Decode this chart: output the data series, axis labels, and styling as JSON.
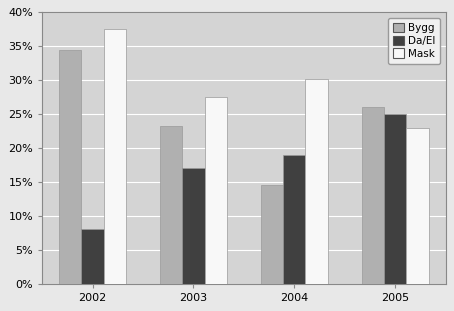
{
  "years": [
    "2002",
    "2003",
    "2004",
    "2005"
  ],
  "series": {
    "Bygg": [
      0.345,
      0.232,
      0.145,
      0.26
    ],
    "Da/El": [
      0.08,
      0.17,
      0.19,
      0.25
    ],
    "Mask": [
      0.375,
      0.275,
      0.302,
      0.23
    ]
  },
  "colors": {
    "Bygg": "#b0b0b0",
    "Da/El": "#404040",
    "Mask": "#f8f8f8"
  },
  "ylim": [
    0,
    0.4
  ],
  "yticks": [
    0.0,
    0.05,
    0.1,
    0.15,
    0.2,
    0.25,
    0.3,
    0.35,
    0.4
  ],
  "figure_bg_color": "#e8e8e8",
  "plot_bg_color": "#d4d4d4",
  "legend_labels": [
    "Bygg",
    "Da/El",
    "Mask"
  ],
  "bar_edge_color": "#999999",
  "bar_width": 0.22
}
